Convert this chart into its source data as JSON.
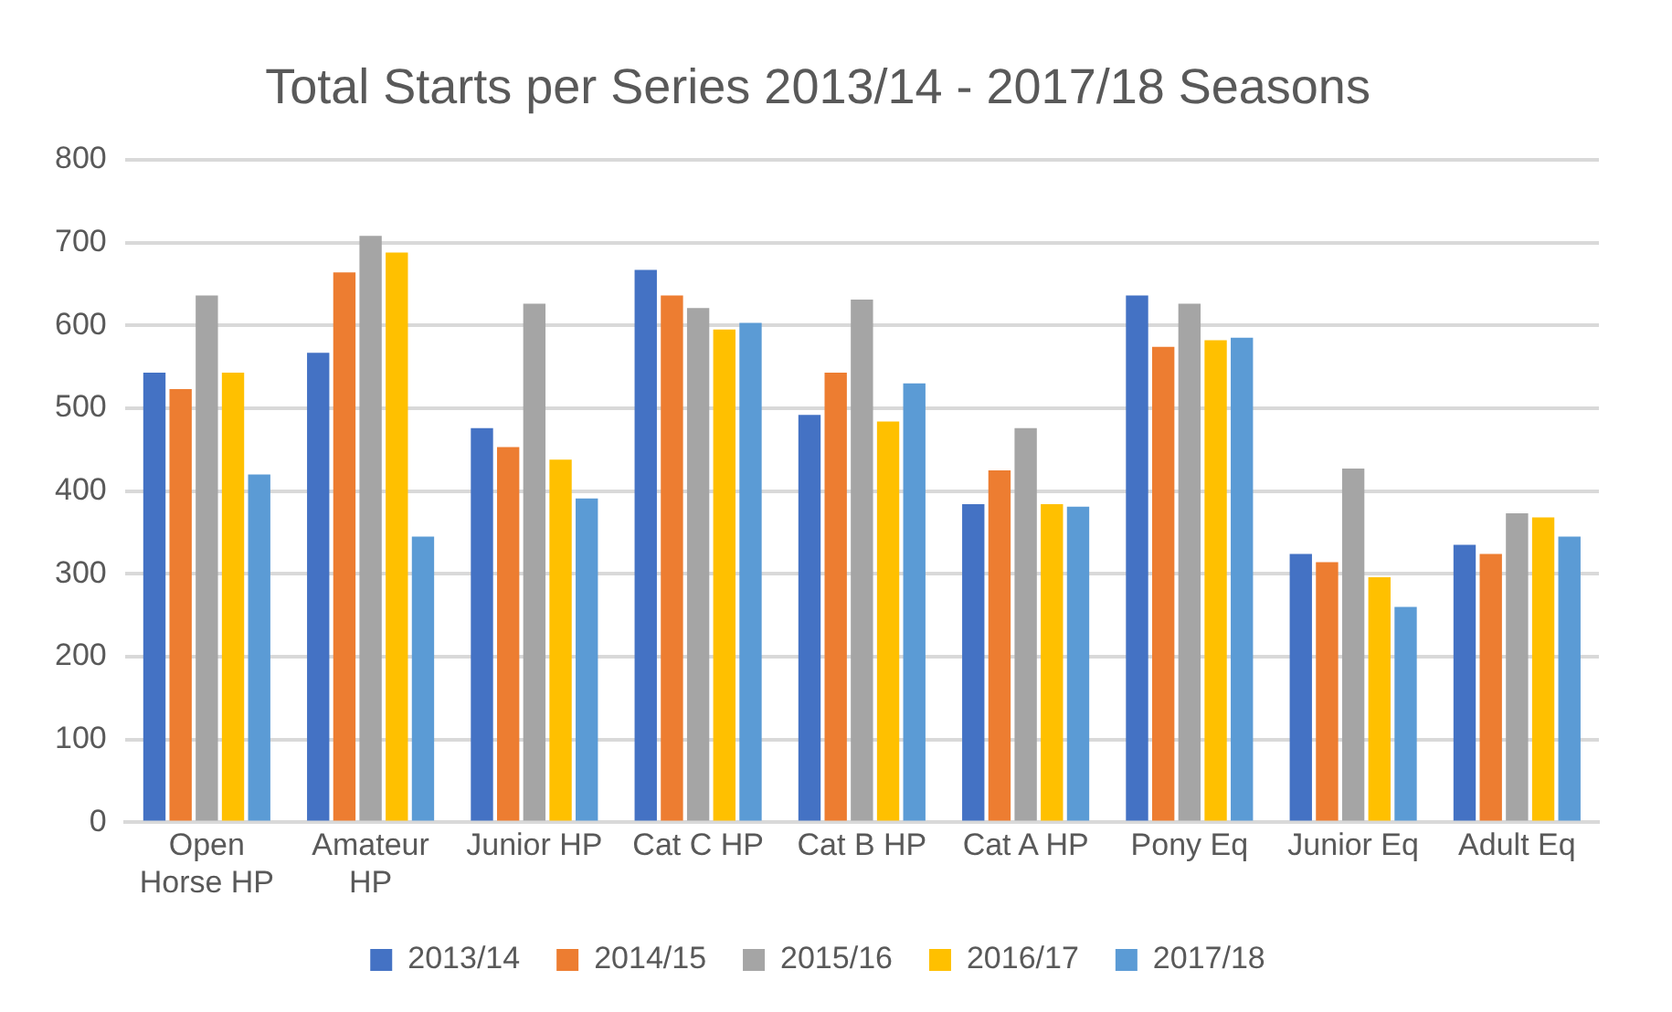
{
  "chart_data": {
    "type": "bar",
    "title": "Total Starts per Series 2013/14 - 2017/18 Seasons",
    "categories": [
      "Open Horse HP",
      "Amateur HP",
      "Junior HP",
      "Cat C HP",
      "Cat B HP",
      "Cat A HP",
      "Pony Eq",
      "Junior Eq",
      "Adult Eq"
    ],
    "series": [
      {
        "name": "2013/14",
        "color": "#4472c4",
        "values": [
          543,
          567,
          476,
          667,
          492,
          384,
          636,
          324,
          335
        ]
      },
      {
        "name": "2014/15",
        "color": "#ed7d31",
        "values": [
          523,
          664,
          453,
          636,
          543,
          425,
          574,
          314,
          324
        ]
      },
      {
        "name": "2015/16",
        "color": "#a5a5a5",
        "values": [
          636,
          708,
          626,
          621,
          631,
          476,
          626,
          427,
          373
        ]
      },
      {
        "name": "2016/17",
        "color": "#ffc000",
        "values": [
          543,
          688,
          438,
          595,
          484,
          384,
          582,
          296,
          368
        ]
      },
      {
        "name": "2017/18",
        "color": "#5b9bd5",
        "values": [
          420,
          345,
          391,
          603,
          530,
          381,
          585,
          260,
          345
        ]
      }
    ],
    "ylim": [
      0,
      800
    ],
    "yticks": [
      0,
      100,
      200,
      300,
      400,
      500,
      600,
      700,
      800
    ],
    "grid": "y",
    "legend": "bottom"
  }
}
